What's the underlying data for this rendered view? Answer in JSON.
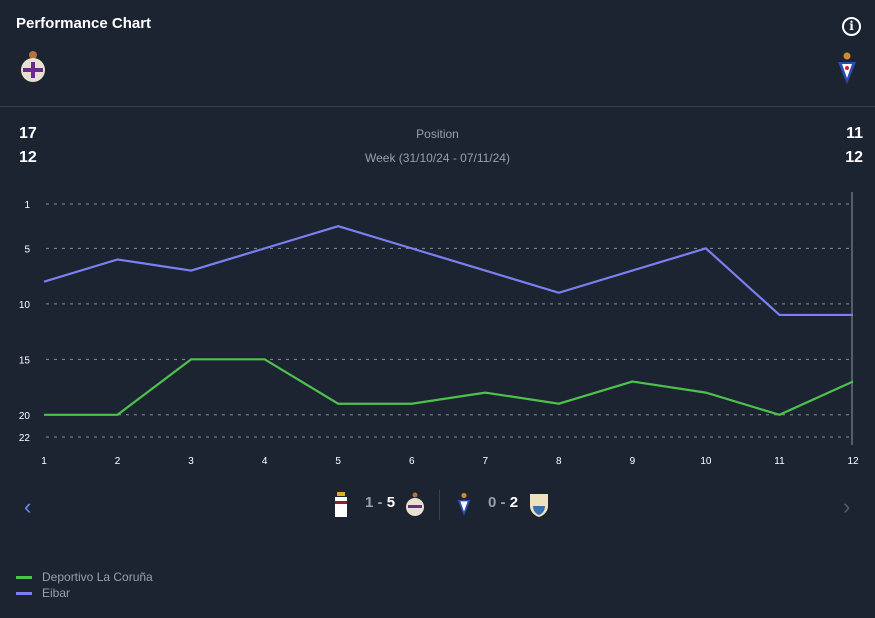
{
  "header": {
    "title": "Performance Chart",
    "info_icon": "info-icon"
  },
  "teams": {
    "home": "Deportivo La Coruña",
    "away": "Eibar"
  },
  "stats": {
    "home_position": "17",
    "home_week": "12",
    "away_position": "11",
    "away_week": "12",
    "position_label": "Position",
    "week_label": "Week (31/10/24 - 07/11/24)"
  },
  "matches": [
    {
      "score_home": "1",
      "score_away": "5"
    },
    {
      "score_home": "0",
      "score_away": "2"
    }
  ],
  "chart_data": {
    "type": "line",
    "x": [
      1,
      2,
      3,
      4,
      5,
      6,
      7,
      8,
      9,
      10,
      11,
      12
    ],
    "y_ticks": [
      1,
      5,
      10,
      15,
      20,
      22
    ],
    "ylim": [
      22,
      1
    ],
    "y_inverted": true,
    "grid": true,
    "legend_position": "bottom-left",
    "series": [
      {
        "name": "Deportivo La Coruña",
        "color": "#4cc24c",
        "values": [
          20,
          20,
          15,
          15,
          19,
          19,
          18,
          19,
          17,
          18,
          20,
          17
        ]
      },
      {
        "name": "Eibar",
        "color": "#7b7ff0",
        "values": [
          8,
          6,
          7,
          5,
          3,
          5,
          7,
          9,
          7,
          5,
          11,
          11
        ]
      }
    ]
  }
}
